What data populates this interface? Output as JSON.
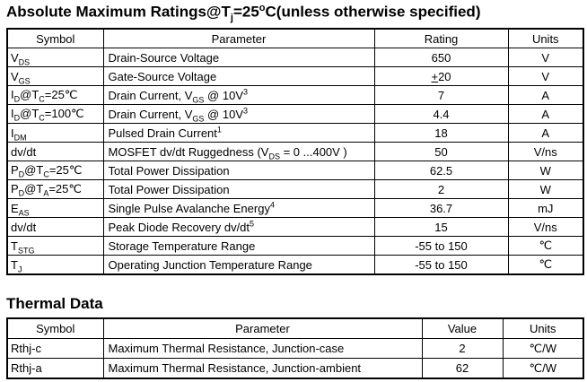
{
  "page": {
    "background_color": "#ffffff",
    "text_color": "#000000",
    "border_color": "#000000"
  },
  "abs_max": {
    "title": [
      [
        "Absolute Maximum Ratings@T",
        ""
      ],
      [
        "j",
        "sub"
      ],
      [
        "=25",
        ""
      ],
      [
        "o",
        "sup"
      ],
      [
        "C(unless otherwise specified)",
        ""
      ]
    ],
    "headers": [
      "Symbol",
      "Parameter",
      "Rating",
      "Units"
    ],
    "rows": [
      [
        [
          [
            "V",
            ""
          ],
          [
            "DS",
            "sub"
          ]
        ],
        [
          [
            "Drain-Source Voltage",
            ""
          ]
        ],
        [
          [
            "650",
            ""
          ]
        ],
        [
          [
            "V",
            ""
          ]
        ]
      ],
      [
        [
          [
            "V",
            ""
          ],
          [
            "GS",
            "sub"
          ]
        ],
        [
          [
            "Gate-Source Voltage",
            ""
          ]
        ],
        [
          [
            "+",
            "u"
          ],
          [
            "20",
            ""
          ]
        ],
        [
          [
            "V",
            ""
          ]
        ]
      ],
      [
        [
          [
            "I",
            ""
          ],
          [
            "D",
            "sub"
          ],
          [
            "@T",
            ""
          ],
          [
            "C",
            "sub"
          ],
          [
            "=25℃",
            ""
          ]
        ],
        [
          [
            "Drain Current, V",
            ""
          ],
          [
            "GS",
            "sub"
          ],
          [
            " @ 10V",
            ""
          ],
          [
            "3",
            "sup"
          ]
        ],
        [
          [
            "7",
            ""
          ]
        ],
        [
          [
            "A",
            ""
          ]
        ]
      ],
      [
        [
          [
            "I",
            ""
          ],
          [
            "D",
            "sub"
          ],
          [
            "@T",
            ""
          ],
          [
            "C",
            "sub"
          ],
          [
            "=100℃",
            ""
          ]
        ],
        [
          [
            "Drain Current, V",
            ""
          ],
          [
            "GS",
            "sub"
          ],
          [
            " @ 10V",
            ""
          ],
          [
            "3",
            "sup"
          ]
        ],
        [
          [
            "4.4",
            ""
          ]
        ],
        [
          [
            "A",
            ""
          ]
        ]
      ],
      [
        [
          [
            "I",
            ""
          ],
          [
            "DM",
            "sub"
          ]
        ],
        [
          [
            "Pulsed Drain Current",
            ""
          ],
          [
            "1",
            "sup"
          ]
        ],
        [
          [
            "18",
            ""
          ]
        ],
        [
          [
            "A",
            ""
          ]
        ]
      ],
      [
        [
          [
            "dv/dt",
            ""
          ]
        ],
        [
          [
            "MOSFET dv/dt Ruggedness (V",
            ""
          ],
          [
            "DS",
            "sub"
          ],
          [
            " = 0 ...400V )",
            ""
          ]
        ],
        [
          [
            "50",
            ""
          ]
        ],
        [
          [
            "V/ns",
            ""
          ]
        ]
      ],
      [
        [
          [
            "P",
            ""
          ],
          [
            "D",
            "sub"
          ],
          [
            "@T",
            ""
          ],
          [
            "C",
            "sub"
          ],
          [
            "=25℃",
            ""
          ]
        ],
        [
          [
            "Total Power Dissipation",
            ""
          ]
        ],
        [
          [
            "62.5",
            ""
          ]
        ],
        [
          [
            "W",
            ""
          ]
        ]
      ],
      [
        [
          [
            "P",
            ""
          ],
          [
            "D",
            "sub"
          ],
          [
            "@T",
            ""
          ],
          [
            "A",
            "sub"
          ],
          [
            "=25℃",
            ""
          ]
        ],
        [
          [
            "Total Power Dissipation",
            ""
          ]
        ],
        [
          [
            "2",
            ""
          ]
        ],
        [
          [
            "W",
            ""
          ]
        ]
      ],
      [
        [
          [
            "E",
            ""
          ],
          [
            "AS",
            "sub"
          ]
        ],
        [
          [
            "Single Pulse Avalanche Energy",
            ""
          ],
          [
            "4",
            "sup"
          ]
        ],
        [
          [
            "36.7",
            ""
          ]
        ],
        [
          [
            "mJ",
            ""
          ]
        ]
      ],
      [
        [
          [
            "dv/dt",
            ""
          ]
        ],
        [
          [
            "Peak Diode Recovery dv/dt",
            ""
          ],
          [
            "5",
            "sup"
          ]
        ],
        [
          [
            "15",
            ""
          ]
        ],
        [
          [
            "V/ns",
            ""
          ]
        ]
      ],
      [
        [
          [
            "T",
            ""
          ],
          [
            "STG",
            "sub"
          ]
        ],
        [
          [
            "Storage Temperature Range",
            ""
          ]
        ],
        [
          [
            "-55 to 150",
            ""
          ]
        ],
        [
          [
            "℃",
            ""
          ]
        ]
      ],
      [
        [
          [
            "T",
            ""
          ],
          [
            "J",
            "sub"
          ]
        ],
        [
          [
            "Operating Junction Temperature Range",
            ""
          ]
        ],
        [
          [
            "-55 to 150",
            ""
          ]
        ],
        [
          [
            "℃",
            ""
          ]
        ]
      ]
    ]
  },
  "thermal": {
    "title": [
      [
        "Thermal Data",
        ""
      ]
    ],
    "headers": [
      "Symbol",
      "Parameter",
      "Value",
      "Units"
    ],
    "rows": [
      [
        [
          [
            "Rthj-c",
            ""
          ]
        ],
        [
          [
            "Maximum Thermal Resistance, Junction-case",
            ""
          ]
        ],
        [
          [
            "2",
            ""
          ]
        ],
        [
          [
            "℃/W",
            ""
          ]
        ]
      ],
      [
        [
          [
            "Rthj-a",
            ""
          ]
        ],
        [
          [
            "Maximum Thermal Resistance, Junction-ambient",
            ""
          ]
        ],
        [
          [
            "62",
            ""
          ]
        ],
        [
          [
            "℃/W",
            ""
          ]
        ]
      ]
    ]
  }
}
